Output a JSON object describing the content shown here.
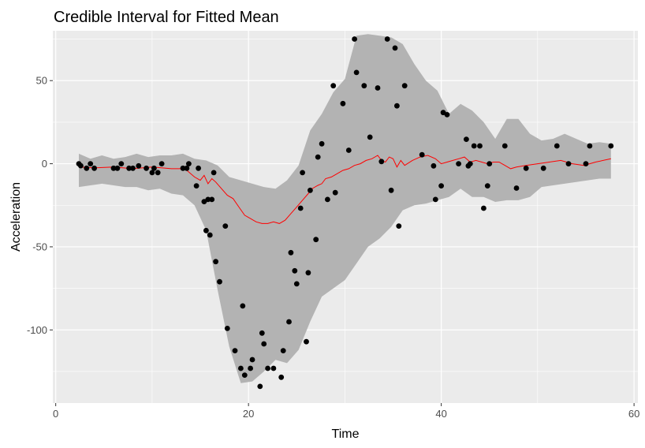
{
  "chart_data": {
    "type": "scatter",
    "title": "Credible Interval for Fitted Mean",
    "xlabel": "Time",
    "ylabel": "Acceleration",
    "xlim": [
      -0.3,
      60.4
    ],
    "ylim": [
      -144,
      80
    ],
    "x_ticks": [
      0,
      20,
      40,
      60
    ],
    "y_ticks": [
      -100,
      -50,
      0,
      50
    ],
    "x_tick_labels": [
      "0",
      "20",
      "40",
      "60"
    ],
    "y_tick_labels": [
      "-100",
      "-50",
      "0",
      "50"
    ],
    "grid": true,
    "legend": "none",
    "colors": {
      "panel": "#ebebeb",
      "grid_major": "#ffffff",
      "band": "#b3b3b3",
      "line": "#ff0000",
      "points": "#000000",
      "tick_text": "#4d4d4d"
    },
    "points": {
      "x": [
        2.4,
        2.6,
        3.2,
        3.6,
        4.0,
        6.0,
        6.4,
        6.8,
        7.6,
        8.0,
        8.6,
        9.4,
        10.0,
        10.2,
        10.6,
        11.0,
        13.2,
        13.6,
        13.8,
        14.6,
        14.8,
        15.4,
        15.6,
        15.8,
        16.0,
        16.2,
        16.4,
        16.6,
        17.0,
        17.6,
        17.8,
        18.6,
        19.2,
        19.4,
        19.6,
        20.2,
        20.4,
        21.2,
        21.4,
        21.6,
        22.0,
        22.6,
        23.4,
        23.6,
        24.2,
        24.4,
        24.8,
        25.0,
        25.4,
        25.6,
        26.0,
        26.2,
        26.4,
        27.0,
        27.2,
        27.6,
        28.2,
        28.8,
        29.0,
        29.8,
        30.4,
        31.0,
        31.2,
        32.0,
        32.6,
        33.4,
        33.8,
        34.4,
        34.8,
        35.2,
        35.4,
        35.6,
        36.2,
        38.0,
        39.2,
        39.4,
        40.0,
        40.2,
        40.6,
        41.8,
        42.6,
        42.8,
        43.0,
        43.4,
        44.0,
        44.4,
        44.8,
        45.0,
        46.6,
        47.8,
        48.8,
        50.6,
        52.0,
        53.2,
        55.0,
        55.4,
        57.6
      ],
      "y": [
        0,
        -1.2,
        -2.7,
        0,
        -2.7,
        -2.7,
        -2.7,
        0,
        -2.7,
        -2.7,
        -1.3,
        -2.7,
        -5.4,
        -2.7,
        -5.4,
        0,
        -2.7,
        -2.7,
        0,
        -13.3,
        -2.7,
        -22.8,
        -40.2,
        -21.5,
        -42.9,
        -21.5,
        -5.4,
        -58.9,
        -71.0,
        -37.5,
        -99.1,
        -112.5,
        -123.1,
        -85.6,
        -127.2,
        -123.1,
        -117.9,
        -134.0,
        -101.9,
        -108.4,
        -123.1,
        -123.1,
        -128.5,
        -112.5,
        -95.1,
        -53.5,
        -64.4,
        -72.3,
        -26.8,
        -5.4,
        -107.1,
        -65.6,
        -16.0,
        -45.6,
        4.0,
        12.0,
        -21.5,
        46.9,
        -17.4,
        36.2,
        8.1,
        75.0,
        54.9,
        46.9,
        16.0,
        45.6,
        1.3,
        75.0,
        -16.0,
        69.6,
        34.8,
        -37.5,
        46.9,
        5.4,
        -1.3,
        -21.5,
        -13.3,
        30.8,
        29.5,
        0,
        14.7,
        -1.3,
        0,
        10.7,
        10.7,
        -26.8,
        -13.3,
        0,
        10.7,
        -14.7,
        -2.7,
        -2.7,
        10.7,
        0,
        0,
        10.7,
        10.7
      ],
      "note_skip": "bind-free"
    },
    "fitted_mean": {
      "x": [
        2.4,
        4.0,
        6.0,
        8.0,
        10.0,
        12.0,
        13.4,
        14.4,
        15.0,
        15.4,
        15.8,
        16.2,
        16.6,
        17.2,
        17.8,
        18.4,
        19.0,
        19.6,
        20.2,
        20.8,
        21.4,
        22.0,
        22.6,
        23.2,
        23.8,
        24.4,
        25.0,
        25.6,
        26.2,
        26.6,
        27.2,
        27.6,
        28.0,
        28.6,
        29.2,
        29.8,
        30.4,
        31.0,
        31.6,
        32.2,
        32.8,
        33.4,
        33.8,
        34.2,
        34.6,
        35.0,
        35.4,
        35.8,
        36.2,
        37.0,
        37.8,
        38.6,
        39.4,
        40.0,
        40.6,
        41.2,
        41.8,
        42.4,
        43.0,
        43.6,
        44.2,
        44.8,
        45.4,
        46.0,
        46.6,
        47.2,
        47.8,
        48.8,
        50.0,
        51.2,
        52.4,
        53.6,
        54.8,
        56.0,
        57.6
      ],
      "y": [
        -2,
        -2.5,
        -2,
        -3,
        -2,
        -3,
        -3,
        -8,
        -10,
        -7,
        -12,
        -9,
        -11,
        -15,
        -19,
        -21,
        -26,
        -31,
        -33,
        -35,
        -36,
        -36,
        -35,
        -36,
        -34,
        -30,
        -26,
        -22,
        -18,
        -15,
        -13,
        -12,
        -9,
        -8,
        -6,
        -4,
        -3,
        -1,
        0,
        2,
        3,
        5,
        2,
        1,
        4,
        3,
        -2,
        2,
        -1,
        2,
        4,
        5,
        3,
        0,
        1,
        2,
        3,
        4,
        1,
        2,
        1,
        0,
        1,
        1,
        -1,
        -3,
        -2,
        -1,
        0,
        1,
        2,
        0,
        -1,
        1,
        3
      ]
    },
    "band": {
      "x": [
        2.4,
        3.6,
        4.8,
        6.0,
        7.2,
        8.4,
        9.6,
        10.8,
        12.0,
        13.2,
        14.4,
        15.6,
        16.8,
        18.0,
        19.2,
        20.4,
        21.6,
        22.8,
        24.0,
        25.2,
        26.4,
        27.6,
        28.8,
        30.0,
        31.2,
        32.4,
        33.6,
        34.8,
        36.0,
        37.2,
        38.4,
        39.6,
        40.8,
        42.0,
        43.2,
        44.4,
        45.6,
        46.8,
        48.0,
        49.2,
        50.4,
        51.6,
        52.8,
        54.0,
        55.2,
        56.4,
        57.6
      ],
      "upper": [
        6,
        3,
        5,
        3,
        4,
        6,
        4,
        5,
        5,
        6,
        3,
        2,
        -1,
        -8,
        -10,
        -12,
        -14,
        -15,
        -10,
        -1,
        20,
        30,
        43,
        51,
        77,
        78,
        77,
        76,
        72,
        60,
        50,
        44,
        30,
        36,
        32,
        25,
        15,
        27,
        27,
        18,
        14,
        15,
        18,
        15,
        12,
        13,
        12
      ],
      "lower": [
        -14,
        -13,
        -12,
        -13,
        -14,
        -14,
        -16,
        -15,
        -18,
        -19,
        -25,
        -40,
        -76,
        -110,
        -132,
        -131,
        -125,
        -118,
        -120,
        -112,
        -95,
        -80,
        -75,
        -70,
        -60,
        -50,
        -45,
        -38,
        -28,
        -25,
        -24,
        -22,
        -20,
        -15,
        -20,
        -20,
        -23,
        -22,
        -22,
        -20,
        -14,
        -13,
        -12,
        -11,
        -10,
        -9,
        -9
      ]
    }
  }
}
